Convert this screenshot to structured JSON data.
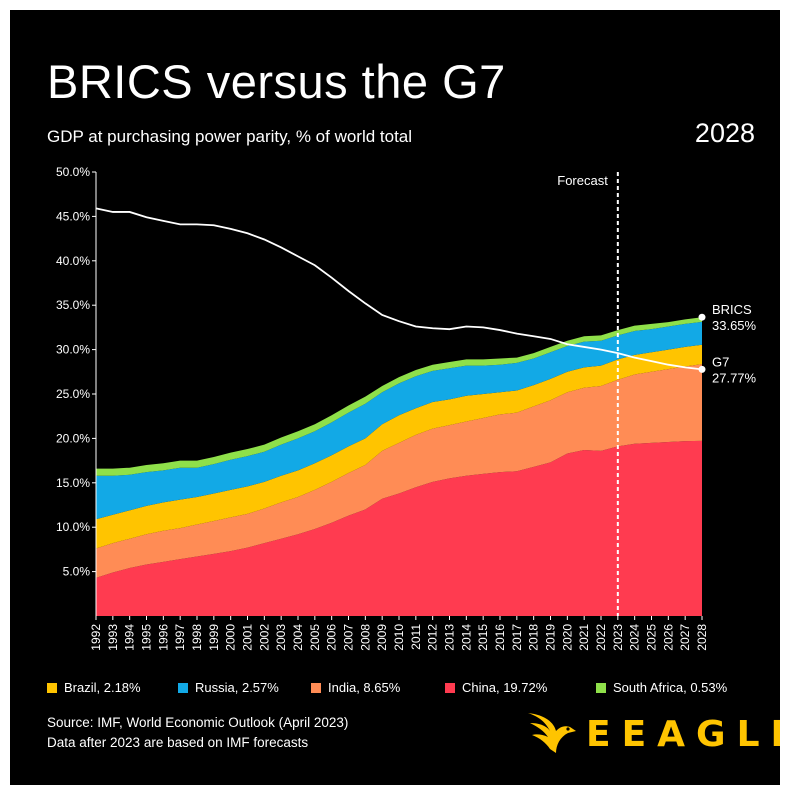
{
  "title": "BRICS versus the G7",
  "subtitle": "GDP at purchasing power parity, % of world total",
  "current_year": "2028",
  "forecast_label": "Forecast",
  "end_labels": {
    "brics_name": "BRICS",
    "brics_value": "33.65%",
    "g7_name": "G7",
    "g7_value": "27.77%"
  },
  "legend": [
    {
      "label": "Brazil, 2.18%",
      "color": "#ffc400"
    },
    {
      "label": "Russia, 2.57%",
      "color": "#12a9e6"
    },
    {
      "label": "India, 8.65%",
      "color": "#ff8c55"
    },
    {
      "label": "China, 19.72%",
      "color": "#ff3b50"
    },
    {
      "label": "South Africa, 0.53%",
      "color": "#8fe04a"
    }
  ],
  "source_line1": "Source: IMF, World Economic Outlook (April 2023)",
  "source_line2": "Data after 2023 are based on IMF forecasts",
  "logo_text": "EEAGLI",
  "logo_icon": "eagle-icon",
  "chart_data": {
    "type": "area",
    "stacked": true,
    "forecast_from": 2023,
    "ylim": [
      0,
      50
    ],
    "yticks": [
      5,
      10,
      15,
      20,
      25,
      30,
      35,
      40,
      45,
      50
    ],
    "ytick_labels": [
      "5.0%",
      "10.0%",
      "15.0%",
      "20.0%",
      "25.0%",
      "30.0%",
      "35.0%",
      "40.0%",
      "45.0%",
      "50.0%"
    ],
    "x": [
      1992,
      1993,
      1994,
      1995,
      1996,
      1997,
      1998,
      1999,
      2000,
      2001,
      2002,
      2003,
      2004,
      2005,
      2006,
      2007,
      2008,
      2009,
      2010,
      2011,
      2012,
      2013,
      2014,
      2015,
      2016,
      2017,
      2018,
      2019,
      2020,
      2021,
      2022,
      2023,
      2024,
      2025,
      2026,
      2027,
      2028
    ],
    "stack_order": [
      "China",
      "India",
      "Brazil",
      "Russia",
      "South Africa"
    ],
    "series": [
      {
        "name": "China",
        "values": [
          4.3,
          4.9,
          5.4,
          5.8,
          6.1,
          6.4,
          6.7,
          7.0,
          7.3,
          7.7,
          8.2,
          8.7,
          9.2,
          9.8,
          10.5,
          11.3,
          12.0,
          13.2,
          13.8,
          14.5,
          15.1,
          15.5,
          15.8,
          16.0,
          16.2,
          16.3,
          16.8,
          17.3,
          18.3,
          18.7,
          18.6,
          19.1,
          19.4,
          19.5,
          19.6,
          19.7,
          19.72
        ]
      },
      {
        "name": "India",
        "values": [
          3.3,
          3.3,
          3.3,
          3.4,
          3.5,
          3.5,
          3.6,
          3.7,
          3.8,
          3.8,
          3.9,
          4.1,
          4.2,
          4.4,
          4.6,
          4.8,
          5.0,
          5.4,
          5.7,
          5.9,
          6.0,
          6.0,
          6.1,
          6.3,
          6.5,
          6.6,
          6.8,
          7.0,
          6.9,
          7.0,
          7.3,
          7.5,
          7.8,
          8.0,
          8.2,
          8.4,
          8.65
        ]
      },
      {
        "name": "Brazil",
        "values": [
          3.3,
          3.2,
          3.2,
          3.2,
          3.2,
          3.2,
          3.1,
          3.1,
          3.1,
          3.1,
          3.0,
          3.0,
          3.0,
          3.0,
          3.0,
          3.0,
          3.0,
          3.0,
          3.1,
          3.0,
          3.0,
          2.9,
          2.9,
          2.7,
          2.5,
          2.5,
          2.4,
          2.4,
          2.3,
          2.3,
          2.3,
          2.3,
          2.2,
          2.2,
          2.2,
          2.2,
          2.18
        ]
      },
      {
        "name": "Russia",
        "values": [
          4.9,
          4.4,
          4.0,
          3.8,
          3.6,
          3.6,
          3.3,
          3.3,
          3.4,
          3.4,
          3.4,
          3.5,
          3.6,
          3.6,
          3.7,
          3.8,
          3.9,
          3.6,
          3.6,
          3.6,
          3.5,
          3.5,
          3.4,
          3.2,
          3.1,
          3.1,
          3.0,
          3.0,
          2.9,
          2.9,
          2.8,
          2.7,
          2.7,
          2.6,
          2.6,
          2.6,
          2.57
        ]
      },
      {
        "name": "South Africa",
        "values": [
          0.8,
          0.8,
          0.8,
          0.8,
          0.8,
          0.8,
          0.8,
          0.8,
          0.8,
          0.8,
          0.8,
          0.8,
          0.8,
          0.8,
          0.8,
          0.8,
          0.8,
          0.7,
          0.7,
          0.7,
          0.7,
          0.7,
          0.7,
          0.7,
          0.7,
          0.6,
          0.6,
          0.6,
          0.6,
          0.6,
          0.6,
          0.6,
          0.6,
          0.6,
          0.5,
          0.5,
          0.53
        ]
      },
      {
        "name": "G7",
        "type": "line",
        "values": [
          45.9,
          45.5,
          45.5,
          44.9,
          44.5,
          44.1,
          44.1,
          44.0,
          43.6,
          43.1,
          42.4,
          41.5,
          40.5,
          39.5,
          38.1,
          36.6,
          35.2,
          33.9,
          33.2,
          32.6,
          32.4,
          32.3,
          32.6,
          32.5,
          32.2,
          31.8,
          31.5,
          31.2,
          30.6,
          30.3,
          30.0,
          29.6,
          29.1,
          28.7,
          28.3,
          28.0,
          27.77
        ]
      }
    ]
  }
}
